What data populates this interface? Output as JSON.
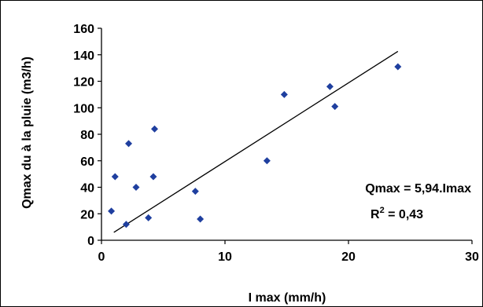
{
  "chart_data": {
    "type": "scatter",
    "title": "",
    "xlabel": "I max (mm/h)",
    "ylabel": "Qmax du à la pluie (m3/h)",
    "xlim": [
      0,
      30
    ],
    "ylim": [
      0,
      160
    ],
    "x_ticks": [
      "0",
      "10",
      "20",
      "30"
    ],
    "y_ticks": [
      "0",
      "20",
      "40",
      "60",
      "80",
      "100",
      "120",
      "140",
      "160"
    ],
    "grid": false,
    "legend": "none",
    "marker": "diamond",
    "marker_color": "#1F3F9F",
    "series": [
      {
        "x": [
          0.8,
          1.1,
          2.0,
          2.2,
          2.8,
          3.8,
          4.2,
          4.3,
          7.6,
          8.0,
          13.4,
          14.8,
          18.5,
          18.9,
          24.0
        ],
        "y": [
          22,
          48,
          12,
          73,
          40,
          17,
          48,
          84,
          37,
          16,
          60,
          110,
          116,
          101,
          131
        ]
      }
    ],
    "trendline": {
      "type": "linear",
      "slope": 5.94,
      "intercept": 0,
      "x_range": [
        1.0,
        24.0
      ],
      "color": "#000000"
    },
    "annotations": {
      "equation": "Qmax = 5,94.Imax",
      "r2_prefix": "R",
      "r2_superscript": "2",
      "r2_value": " = 0,43"
    }
  }
}
